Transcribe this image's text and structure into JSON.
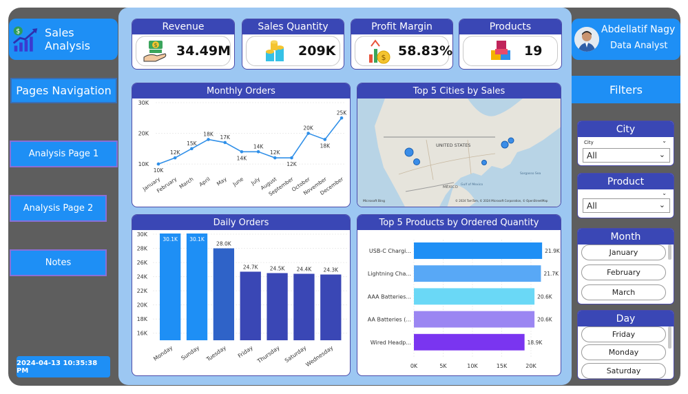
{
  "app": {
    "title": "Sales Analysis"
  },
  "nav": {
    "pages_label": "Pages Navigation",
    "items": [
      {
        "label": "Analysis Page 1"
      },
      {
        "label": "Analysis Page 2"
      },
      {
        "label": "Notes"
      }
    ],
    "timestamp": "2024-04-13 10:35:38 PM"
  },
  "kpis": {
    "revenue": {
      "title": "Revenue",
      "value": "34.49M",
      "icon": "money-hand-icon"
    },
    "quantity": {
      "title": "Sales Quantity",
      "value": "209K",
      "icon": "coins-stack-icon"
    },
    "margin": {
      "title": "Profit Margin",
      "value": "58.83%",
      "icon": "growth-coin-icon"
    },
    "products": {
      "title": "Products",
      "value": "19",
      "icon": "boxes-icon"
    }
  },
  "profile": {
    "name": "Abdellatif Nagy",
    "role": "Data Analyst"
  },
  "filters": {
    "title": "Filters",
    "city": {
      "title": "City",
      "small_label": "City",
      "value": "All"
    },
    "product": {
      "title": "Product",
      "value": "All"
    },
    "month": {
      "title": "Month",
      "options": [
        "January",
        "February",
        "March"
      ]
    },
    "day": {
      "title": "Day",
      "options": [
        "Friday",
        "Monday",
        "Saturday"
      ]
    }
  },
  "map": {
    "title": "Top 5 Cities by Sales",
    "country_label": "UNITED STATES",
    "labels": [
      "MÉXICO",
      "Gulf of Mexico",
      "Sargasso Sea"
    ],
    "copyright": "© 2024 TomTom, © 2024 Microsoft Corporation, © OpenStreetMap",
    "brand": "Microsoft Bing"
  },
  "chart_data": [
    {
      "type": "line",
      "title": "Monthly Orders",
      "categories": [
        "January",
        "February",
        "March",
        "April",
        "May",
        "June",
        "July",
        "August",
        "September",
        "October",
        "November",
        "December"
      ],
      "values": [
        10000,
        12000,
        15000,
        18000,
        17000,
        14000,
        14000,
        12000,
        12000,
        20000,
        18000,
        25000
      ],
      "data_labels": [
        "10K",
        "12K",
        "15K",
        "18K",
        "17K",
        "14K",
        "14K",
        "12K",
        "12K",
        "20K",
        "18K",
        "25K"
      ],
      "y_ticks": [
        "10K",
        "20K",
        "30K"
      ],
      "ylim": [
        8000,
        30000
      ]
    },
    {
      "type": "bar",
      "title": "Daily Orders",
      "categories": [
        "Monday",
        "Sunday",
        "Tuesday",
        "Friday",
        "Thursday",
        "Saturday",
        "Wednesday"
      ],
      "values": [
        30100,
        30100,
        28000,
        24700,
        24500,
        24400,
        24300
      ],
      "data_labels": [
        "30.1K",
        "30.1K",
        "28.0K",
        "24.7K",
        "24.5K",
        "24.4K",
        "24.3K"
      ],
      "colors": [
        "#1e8ff5",
        "#1e8ff5",
        "#2f63c8",
        "#3a47b5",
        "#3a47b5",
        "#3a47b5",
        "#3a47b5"
      ],
      "y_ticks": [
        "16K",
        "18K",
        "20K",
        "22K",
        "24K",
        "26K",
        "28K",
        "30K"
      ],
      "ylim": [
        15000,
        30000
      ]
    },
    {
      "type": "bar",
      "orientation": "horizontal",
      "title": "Top 5 Products by Ordered Quantity",
      "categories": [
        "USB-C Chargi...",
        "Lightning Cha...",
        "AAA Batteries...",
        "AA Batteries (...",
        "Wired Headp..."
      ],
      "values": [
        21900,
        21700,
        20600,
        20600,
        18900
      ],
      "data_labels": [
        "21.9K",
        "21.7K",
        "20.6K",
        "20.6K",
        "18.9K"
      ],
      "colors": [
        "#1e8ff5",
        "#58a8f6",
        "#6ad8f6",
        "#9b86f2",
        "#7a35f0"
      ],
      "x_ticks": [
        "0K",
        "5K",
        "10K",
        "15K",
        "20K"
      ],
      "xlim": [
        0,
        24000
      ]
    }
  ]
}
